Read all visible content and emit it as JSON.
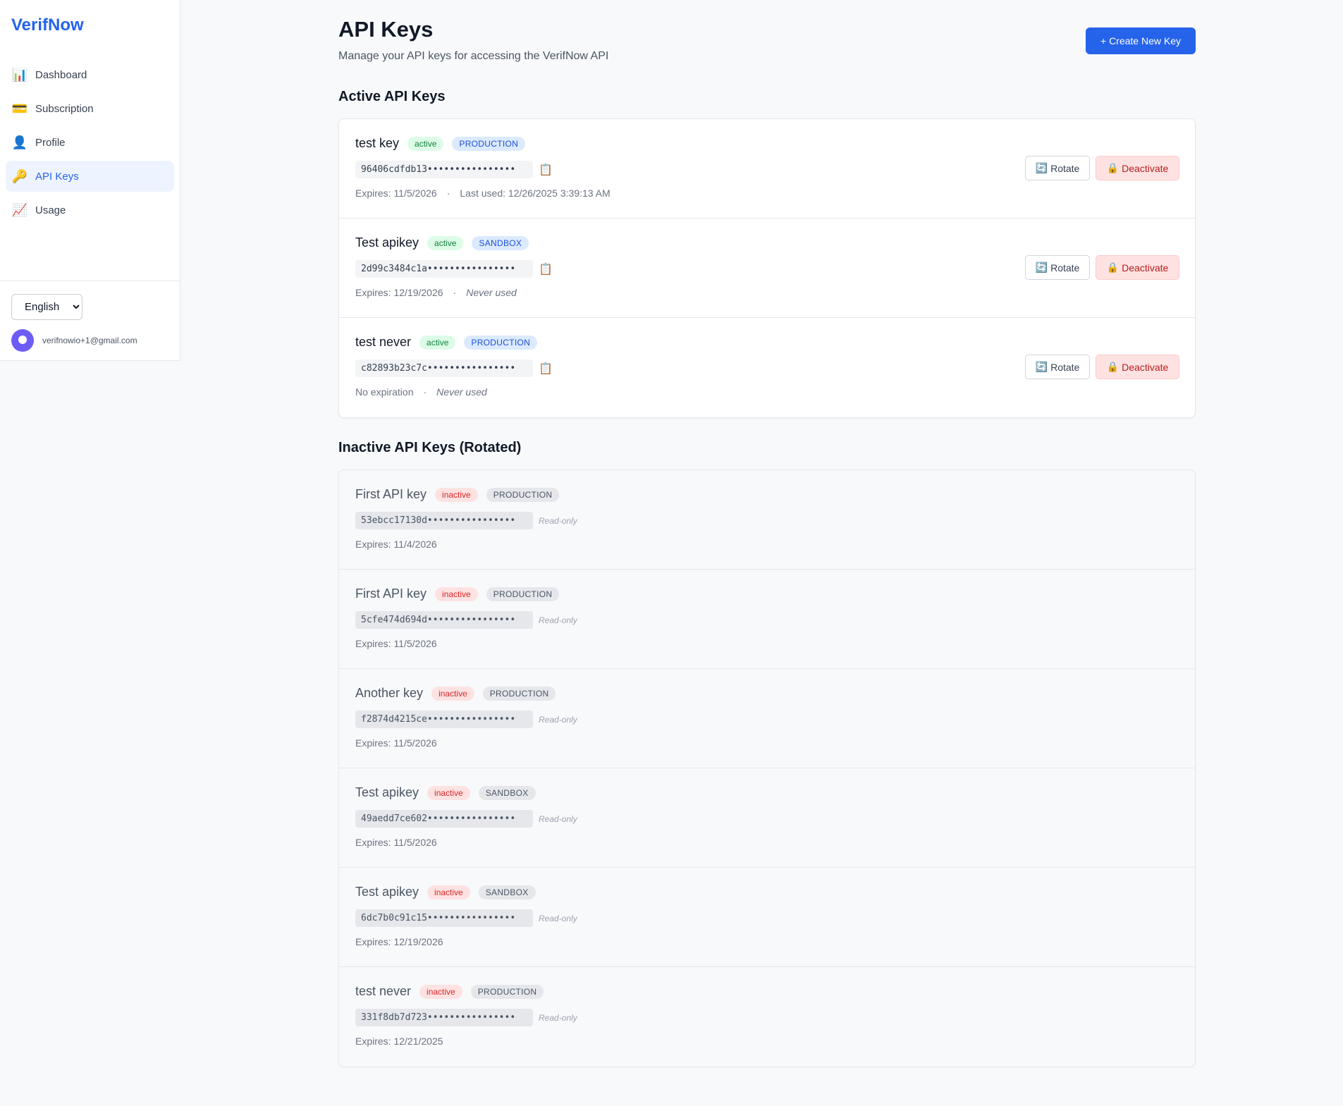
{
  "app": {
    "brand": "VerifNow"
  },
  "sidebar": {
    "items": [
      {
        "label": "Dashboard",
        "icon": "bar-chart-icon",
        "glyph": "📊"
      },
      {
        "label": "Subscription",
        "icon": "credit-card-icon",
        "glyph": "💳"
      },
      {
        "label": "Profile",
        "icon": "user-icon",
        "glyph": "👤"
      },
      {
        "label": "API Keys",
        "icon": "key-icon",
        "glyph": "🔑",
        "active": true
      },
      {
        "label": "Usage",
        "icon": "trend-chart-icon",
        "glyph": "📈"
      }
    ],
    "language": {
      "selected": "English",
      "options": [
        "English"
      ]
    },
    "user_email": "verifnowio+1@gmail.com"
  },
  "header": {
    "title": "API Keys",
    "subtitle": "Manage your API keys for accessing the VerifNow API",
    "create_button": "+ Create New Key"
  },
  "active_section": {
    "title": "Active API Keys",
    "copy_glyph": "📋",
    "rotate_glyph": "🔄",
    "deactivate_glyph": "🔒",
    "keys": [
      {
        "name": "test key",
        "status": "active",
        "env": "PRODUCTION",
        "key": "96406cdfdb13••••••••••••••••",
        "expires": "Expires: 11/5/2026",
        "last_used": "Last used: 12/26/2025 3:39:13 AM",
        "rotate": "Rotate",
        "deactivate": "Deactivate",
        "sep": "·"
      },
      {
        "name": "Test apikey",
        "status": "active",
        "env": "SANDBOX",
        "key": "2d99c3484c1a••••••••••••••••",
        "expires": "Expires: 12/19/2026",
        "last_used": "Never used",
        "rotate": "Rotate",
        "deactivate": "Deactivate",
        "sep": "·"
      },
      {
        "name": "test never",
        "status": "active",
        "env": "PRODUCTION",
        "key": "c82893b23c7c••••••••••••••••",
        "expires": "No expiration",
        "last_used": "Never used",
        "rotate": "Rotate",
        "deactivate": "Deactivate",
        "sep": "·"
      }
    ]
  },
  "inactive_section": {
    "title": "Inactive API Keys (Rotated)",
    "readonly_label": "Read-only",
    "keys": [
      {
        "name": "First API key",
        "status": "inactive",
        "env": "PRODUCTION",
        "key": "53ebcc17130d••••••••••••••••",
        "expires": "Expires: 11/4/2026"
      },
      {
        "name": "First API key",
        "status": "inactive",
        "env": "PRODUCTION",
        "key": "5cfe474d694d••••••••••••••••",
        "expires": "Expires: 11/5/2026"
      },
      {
        "name": "Another key",
        "status": "inactive",
        "env": "PRODUCTION",
        "key": "f2874d4215ce••••••••••••••••",
        "expires": "Expires: 11/5/2026"
      },
      {
        "name": "Test apikey",
        "status": "inactive",
        "env": "SANDBOX",
        "key": "49aedd7ce602••••••••••••••••",
        "expires": "Expires: 11/5/2026"
      },
      {
        "name": "Test apikey",
        "status": "inactive",
        "env": "SANDBOX",
        "key": "6dc7b0c91c15••••••••••••••••",
        "expires": "Expires: 12/19/2026"
      },
      {
        "name": "test never",
        "status": "inactive",
        "env": "PRODUCTION",
        "key": "331f8db7d723••••••••••••••••",
        "expires": "Expires: 12/21/2025"
      }
    ]
  },
  "colors": {
    "accent": "#2563eb",
    "danger": "#b91c1c",
    "success": "#15803d"
  }
}
